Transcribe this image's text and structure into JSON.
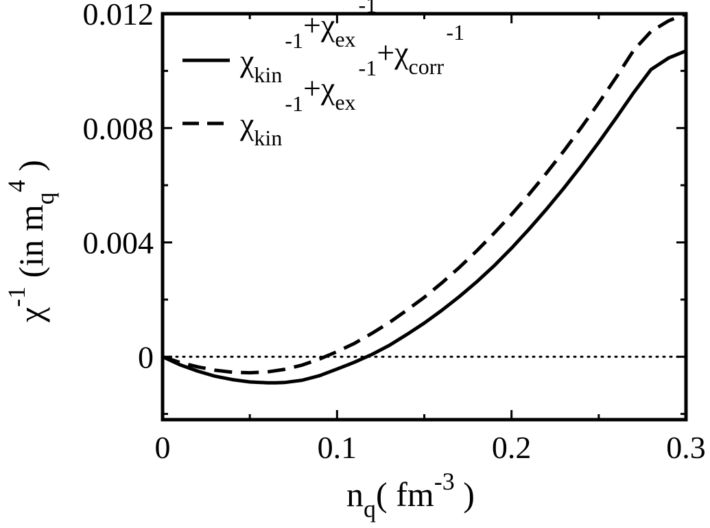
{
  "chart_data": {
    "type": "line",
    "title": "",
    "xlabel": {
      "base": "n",
      "sub": "q",
      "pre": "( fm",
      "sup": "-3",
      "post": " )"
    },
    "ylabel": {
      "base": "χ",
      "sup": "-1",
      "pre": " (in m",
      "sub": "q",
      "sup2": "4",
      "post": " )"
    },
    "xlim": [
      0,
      0.3
    ],
    "ylim": [
      -0.0022,
      0.012
    ],
    "xticks": [
      0,
      0.1,
      0.2,
      0.3
    ],
    "xtick_labels": [
      "0",
      "0.1",
      "0.2",
      "0.3"
    ],
    "yticks": [
      0,
      0.004,
      0.008,
      0.012
    ],
    "ytick_labels": [
      "0",
      "0.004",
      "0.008",
      "0.012"
    ],
    "grid": false,
    "legend_position": "top-left",
    "reference_line": {
      "y": 0,
      "style": "dotted"
    },
    "series": [
      {
        "style": "solid",
        "legend": [
          {
            "base": "χ",
            "sub": "kin",
            "sup": "-1"
          },
          {
            "base": "+χ",
            "sub": "ex",
            "sup": "-1"
          }
        ],
        "x": [
          0,
          0.01,
          0.02,
          0.03,
          0.04,
          0.05,
          0.06,
          0.065,
          0.07,
          0.08,
          0.09,
          0.1,
          0.11,
          0.12,
          0.13,
          0.14,
          0.15,
          0.16,
          0.17,
          0.18,
          0.19,
          0.2,
          0.21,
          0.22,
          0.23,
          0.24,
          0.25,
          0.26,
          0.27,
          0.28,
          0.29,
          0.3
        ],
        "y": [
          0,
          -0.00028,
          -0.0005,
          -0.00068,
          -0.0008,
          -0.00088,
          -0.00091,
          -0.00091,
          -0.0009,
          -0.00082,
          -0.00066,
          -0.00043,
          -0.00019,
          8e-05,
          0.0004,
          0.00078,
          0.00118,
          0.00162,
          0.0021,
          0.00262,
          0.00318,
          0.0038,
          0.00446,
          0.00516,
          0.0059,
          0.00668,
          0.0075,
          0.00836,
          0.00924,
          0.01005,
          0.01045,
          0.0107
        ]
      },
      {
        "style": "dashed",
        "legend": [
          {
            "base": "χ",
            "sub": "kin",
            "sup": "-1"
          },
          {
            "base": "+χ",
            "sub": "ex",
            "sup": "-1"
          },
          {
            "base": "+χ",
            "sub": "corr",
            "sup": "-1"
          }
        ],
        "x": [
          0,
          0.01,
          0.02,
          0.03,
          0.04,
          0.05,
          0.06,
          0.07,
          0.08,
          0.09,
          0.1,
          0.11,
          0.12,
          0.13,
          0.14,
          0.15,
          0.16,
          0.17,
          0.18,
          0.19,
          0.2,
          0.21,
          0.22,
          0.23,
          0.24,
          0.25,
          0.26,
          0.27,
          0.28,
          0.29,
          0.3
        ],
        "y": [
          0,
          -0.0002,
          -0.00035,
          -0.00047,
          -0.00054,
          -0.00056,
          -0.00053,
          -0.00044,
          -0.00029,
          -8e-05,
          0.00018,
          0.00047,
          0.00082,
          0.0012,
          0.00163,
          0.00208,
          0.00258,
          0.00312,
          0.0037,
          0.00432,
          0.00498,
          0.00568,
          0.00642,
          0.0072,
          0.00802,
          0.00888,
          0.00978,
          0.01072,
          0.01138,
          0.01175,
          0.012
        ]
      }
    ]
  }
}
